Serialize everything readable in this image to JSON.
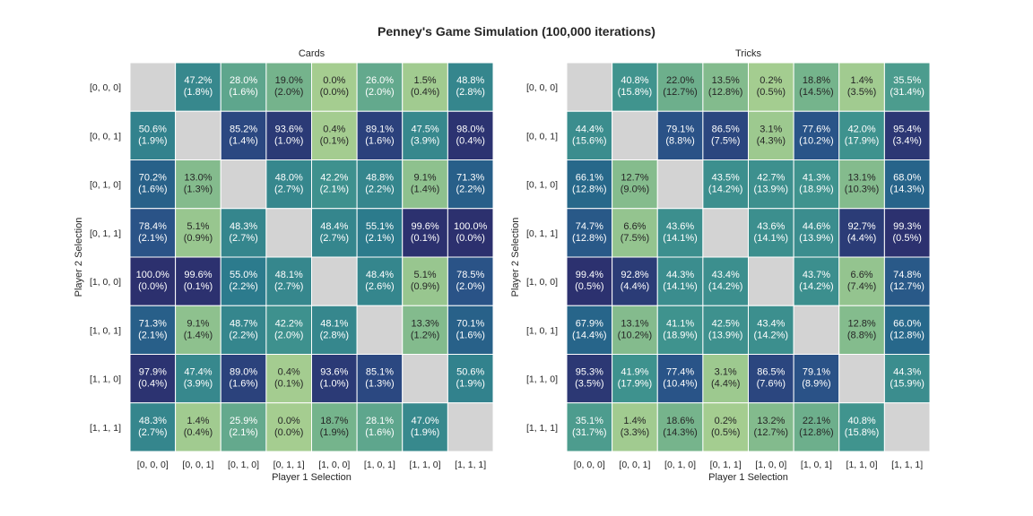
{
  "suptitle": "Penney's Game Simulation (100,000 iterations)",
  "colors": {
    "diagonal": "#d3d3d3",
    "text_dark": "#262626",
    "text_light": "#ffffff",
    "cell_border": "#ffffff"
  },
  "chart_data": [
    {
      "type": "heatmap",
      "title": "Cards",
      "xlabel": "Player 1 Selection",
      "ylabel": "Player 2 Selection",
      "categories": [
        "[0, 0, 0]",
        "[0, 0, 1]",
        "[0, 1, 0]",
        "[0, 1, 1]",
        "[1, 0, 0]",
        "[1, 0, 1]",
        "[1, 1, 0]",
        "[1, 1, 1]"
      ],
      "win_pct": [
        [
          null,
          47.2,
          28.0,
          19.0,
          0.0,
          26.0,
          1.5,
          48.8
        ],
        [
          50.6,
          null,
          85.2,
          93.6,
          0.4,
          89.1,
          47.5,
          98.0
        ],
        [
          70.2,
          13.0,
          null,
          48.0,
          42.2,
          48.8,
          9.1,
          71.3
        ],
        [
          78.4,
          5.1,
          48.3,
          null,
          48.4,
          55.1,
          99.6,
          100.0
        ],
        [
          100.0,
          99.6,
          55.0,
          48.1,
          null,
          48.4,
          5.1,
          78.5
        ],
        [
          71.3,
          9.1,
          48.7,
          42.2,
          48.1,
          null,
          13.3,
          70.1
        ],
        [
          97.9,
          47.4,
          89.0,
          0.4,
          93.6,
          85.1,
          null,
          50.6
        ],
        [
          48.3,
          1.4,
          25.9,
          0.0,
          18.7,
          28.1,
          47.0,
          null
        ]
      ],
      "draw_pct": [
        [
          null,
          1.8,
          1.6,
          2.0,
          0.0,
          2.0,
          0.4,
          2.8
        ],
        [
          1.9,
          null,
          1.4,
          1.0,
          0.1,
          1.6,
          3.9,
          0.4
        ],
        [
          1.6,
          1.3,
          null,
          2.7,
          2.1,
          2.2,
          1.4,
          2.2
        ],
        [
          2.1,
          0.9,
          2.7,
          null,
          2.7,
          2.1,
          0.1,
          0.0
        ],
        [
          0.0,
          0.1,
          2.2,
          2.7,
          null,
          2.6,
          0.9,
          2.0
        ],
        [
          2.1,
          1.4,
          2.2,
          2.0,
          2.8,
          null,
          1.2,
          1.6
        ],
        [
          0.4,
          3.9,
          1.6,
          0.1,
          1.0,
          1.3,
          null,
          1.9
        ],
        [
          2.7,
          0.4,
          2.1,
          0.0,
          1.9,
          1.6,
          1.9,
          null
        ]
      ]
    },
    {
      "type": "heatmap",
      "title": "Tricks",
      "xlabel": "Player 1 Selection",
      "ylabel": "Player 2 Selection",
      "categories": [
        "[0, 0, 0]",
        "[0, 0, 1]",
        "[0, 1, 0]",
        "[0, 1, 1]",
        "[1, 0, 0]",
        "[1, 0, 1]",
        "[1, 1, 0]",
        "[1, 1, 1]"
      ],
      "win_pct": [
        [
          null,
          40.8,
          22.0,
          13.5,
          0.2,
          18.8,
          1.4,
          35.5
        ],
        [
          44.4,
          null,
          79.1,
          86.5,
          3.1,
          77.6,
          42.0,
          95.4
        ],
        [
          66.1,
          12.7,
          null,
          43.5,
          42.7,
          41.3,
          13.1,
          68.0
        ],
        [
          74.7,
          6.6,
          43.6,
          null,
          43.6,
          44.6,
          92.7,
          99.3
        ],
        [
          99.4,
          92.8,
          44.3,
          43.4,
          null,
          43.7,
          6.6,
          74.8
        ],
        [
          67.9,
          13.1,
          41.1,
          42.5,
          43.4,
          null,
          12.8,
          66.0
        ],
        [
          95.3,
          41.9,
          77.4,
          3.1,
          86.5,
          79.1,
          null,
          44.3
        ],
        [
          35.1,
          1.4,
          18.6,
          0.2,
          13.2,
          22.1,
          40.8,
          null
        ]
      ],
      "draw_pct": [
        [
          null,
          15.8,
          12.7,
          12.8,
          0.5,
          14.5,
          3.5,
          31.4
        ],
        [
          15.6,
          null,
          8.8,
          7.5,
          4.3,
          10.2,
          17.9,
          3.4
        ],
        [
          12.8,
          9.0,
          null,
          14.2,
          13.9,
          18.9,
          10.3,
          14.3
        ],
        [
          12.8,
          7.5,
          14.1,
          null,
          14.1,
          13.9,
          4.4,
          0.5
        ],
        [
          0.5,
          4.4,
          14.1,
          14.2,
          null,
          14.2,
          7.4,
          12.7
        ],
        [
          14.4,
          10.2,
          18.9,
          13.9,
          14.2,
          null,
          8.8,
          12.8
        ],
        [
          3.5,
          17.9,
          10.4,
          4.4,
          7.6,
          8.9,
          null,
          15.9
        ],
        [
          31.7,
          3.3,
          14.3,
          0.5,
          12.7,
          12.8,
          15.8,
          null
        ]
      ]
    }
  ]
}
